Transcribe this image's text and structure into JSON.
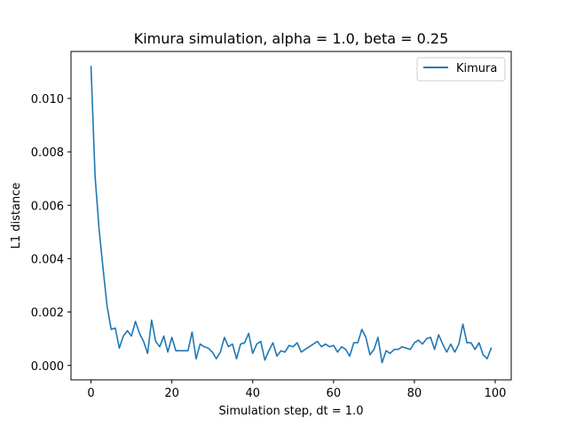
{
  "chart_data": {
    "type": "line",
    "title": "Kimura simulation, alpha = 1.0, beta = 0.25",
    "xlabel": "Simulation step, dt = 1.0",
    "ylabel": "L1 distance",
    "xlim": [
      -4.95,
      103.95
    ],
    "ylim": [
      -0.00054,
      0.01176
    ],
    "xticks": [
      0,
      20,
      40,
      60,
      80,
      100
    ],
    "xtick_labels": [
      "0",
      "20",
      "40",
      "60",
      "80",
      "100"
    ],
    "yticks": [
      0.0,
      0.002,
      0.004,
      0.006,
      0.008,
      0.01
    ],
    "ytick_labels": [
      "0.000",
      "0.002",
      "0.004",
      "0.006",
      "0.008",
      "0.010"
    ],
    "grid": false,
    "legend_position": "top-right",
    "series": [
      {
        "name": "Kimura",
        "color": "#1f77b4",
        "x": [
          0,
          1,
          2,
          3,
          4,
          5,
          6,
          7,
          8,
          9,
          10,
          11,
          12,
          13,
          14,
          15,
          16,
          17,
          18,
          19,
          20,
          21,
          22,
          23,
          24,
          25,
          26,
          27,
          28,
          29,
          30,
          31,
          32,
          33,
          34,
          35,
          36,
          37,
          38,
          39,
          40,
          41,
          42,
          43,
          44,
          45,
          46,
          47,
          48,
          49,
          50,
          51,
          52,
          53,
          54,
          55,
          56,
          57,
          58,
          59,
          60,
          61,
          62,
          63,
          64,
          65,
          66,
          67,
          68,
          69,
          70,
          71,
          72,
          73,
          74,
          75,
          76,
          77,
          78,
          79,
          80,
          81,
          82,
          83,
          84,
          85,
          86,
          87,
          88,
          89,
          90,
          91,
          92,
          93,
          94,
          95,
          96,
          97,
          98,
          99
        ],
        "y": [
          0.0112,
          0.0071,
          0.0051,
          0.0036,
          0.0022,
          0.00135,
          0.0014,
          0.00065,
          0.0011,
          0.0013,
          0.0011,
          0.00165,
          0.0012,
          0.0009,
          0.00045,
          0.0017,
          0.0009,
          0.0007,
          0.0011,
          0.0005,
          0.00105,
          0.00055,
          0.00055,
          0.00055,
          0.00055,
          0.00125,
          0.00025,
          0.0008,
          0.0007,
          0.00065,
          0.0005,
          0.00025,
          0.0005,
          0.00105,
          0.0007,
          0.0008,
          0.00025,
          0.0008,
          0.00085,
          0.0012,
          0.00045,
          0.0008,
          0.0009,
          0.0002,
          0.00055,
          0.00085,
          0.00035,
          0.00055,
          0.0005,
          0.00075,
          0.0007,
          0.00085,
          0.0005,
          0.0006,
          0.0007,
          0.0008,
          0.0009,
          0.0007,
          0.0008,
          0.0007,
          0.00075,
          0.0005,
          0.0007,
          0.0006,
          0.00035,
          0.00085,
          0.00085,
          0.00135,
          0.00105,
          0.0004,
          0.0006,
          0.00105,
          0.0001,
          0.00055,
          0.00045,
          0.0006,
          0.0006,
          0.0007,
          0.00065,
          0.0006,
          0.00085,
          0.00095,
          0.0008,
          0.001,
          0.00105,
          0.0006,
          0.00115,
          0.0008,
          0.0005,
          0.0008,
          0.0005,
          0.0008,
          0.00155,
          0.00085,
          0.00085,
          0.0006,
          0.00085,
          0.0004,
          0.00025,
          0.00065
        ]
      }
    ]
  }
}
